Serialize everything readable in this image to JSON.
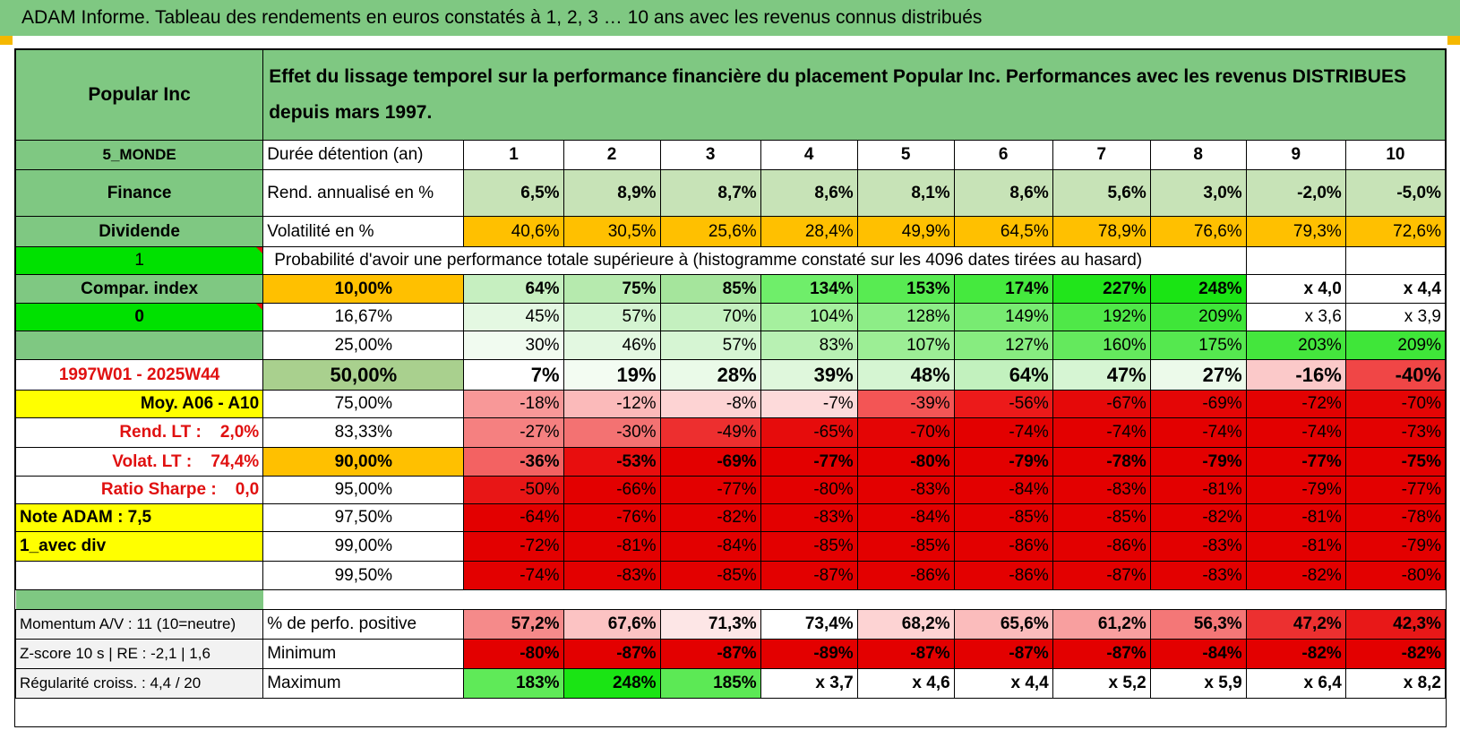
{
  "header": {
    "title": "ADAM Informe. Tableau des rendements en euros constatés à 1, 2, 3 … 10 ans avec les revenus connus distribués",
    "fund": "Popular Inc",
    "description": "Effet du lissage temporel sur la performance financière du placement Popular Inc. Performances avec les revenus DISTRIBUES depuis mars 1997."
  },
  "side": {
    "zone": "5_MONDE",
    "sector": "Finance",
    "type": "Dividende",
    "flag1": "1",
    "compar": "Compar. index",
    "flag0": "0",
    "period": "1997W01 - 2025W44",
    "moy": "Moy. A06 - A10",
    "rend_lt": "Rend. LT :    2,0%",
    "volat_lt": "Volat. LT :    74,4%",
    "sharpe": "Ratio Sharpe :    0,0",
    "note": "Note ADAM : 7,5",
    "avec_div": "1_avec div",
    "momentum": "Momentum A/V : 11 (10=neutre)",
    "zscore": "Z-score 10 s | RE : -2,1 | 1,6",
    "regularite": "Régularité croiss. : 4,4 / 20"
  },
  "labels": {
    "duree": "Durée détention (an)",
    "rend": "Rend. annualisé en %",
    "vol": "Volatilité en %",
    "proba": "Probabilité d'avoir une performance totale supérieure à (histogramme constaté sur les 4096 dates tirées au hasard)",
    "pct_pos": "% de perfo. positive",
    "minimum": "Minimum",
    "maximum": "Maximum"
  },
  "years": [
    "1",
    "2",
    "3",
    "4",
    "5",
    "6",
    "7",
    "8",
    "9",
    "10"
  ],
  "rend": [
    "6,5%",
    "8,9%",
    "8,7%",
    "8,6%",
    "8,1%",
    "8,6%",
    "5,6%",
    "3,0%",
    "-2,0%",
    "-5,0%"
  ],
  "vol": [
    "40,6%",
    "30,5%",
    "25,6%",
    "28,4%",
    "49,9%",
    "64,5%",
    "78,9%",
    "76,6%",
    "79,3%",
    "72,6%"
  ],
  "quantiles": [
    {
      "label": "10,00%",
      "values": [
        "64%",
        "75%",
        "85%",
        "134%",
        "153%",
        "174%",
        "227%",
        "248%",
        "x 4,0",
        "x 4,4"
      ],
      "colors": [
        "#c6efc0",
        "#b6eaae",
        "#a5e59c",
        "#6fee6a",
        "#58eb52",
        "#45e93e",
        "#21e51b",
        "#1ae414",
        "#ffffff",
        "#ffffff"
      ]
    },
    {
      "label": "16,67%",
      "values": [
        "45%",
        "57%",
        "70%",
        "104%",
        "128%",
        "149%",
        "192%",
        "209%",
        "x 3,6",
        "x 3,9"
      ],
      "colors": [
        "#e4f8e2",
        "#d4f4d1",
        "#c4f0bf",
        "#a5f09e",
        "#8ded87",
        "#78eb72",
        "#4fe848",
        "#3fe639",
        "#ffffff",
        "#ffffff"
      ]
    },
    {
      "label": "25,00%",
      "values": [
        "30%",
        "46%",
        "57%",
        "83%",
        "107%",
        "127%",
        "160%",
        "175%",
        "203%",
        "209%"
      ],
      "colors": [
        "#f1fbf0",
        "#e3f8e1",
        "#d6f5d3",
        "#b8f1b3",
        "#9cee95",
        "#87ec80",
        "#64e95d",
        "#55e84f",
        "#44e63d",
        "#3fe639"
      ]
    },
    {
      "label": "50,00%",
      "values": [
        "7%",
        "19%",
        "28%",
        "39%",
        "48%",
        "64%",
        "47%",
        "27%",
        "-16%",
        "-40%"
      ],
      "colors": [
        "#ffffff",
        "#f3fcf2",
        "#eafaE8",
        "#dff7dc",
        "#d5f5d2",
        "#c2f1be",
        "#d6f5d3",
        "#ecfaea",
        "#fbc9c9",
        "#f04646"
      ]
    },
    {
      "label": "75,00%",
      "values": [
        "-18%",
        "-12%",
        "-8%",
        "-7%",
        "-39%",
        "-56%",
        "-67%",
        "-69%",
        "-72%",
        "-70%"
      ],
      "colors": [
        "#f89898",
        "#fbbaba",
        "#fdd3d3",
        "#fddada",
        "#f35555",
        "#ec1a1a",
        "#e50909",
        "#e40606",
        "#e30202",
        "#e40505"
      ]
    },
    {
      "label": "83,33%",
      "values": [
        "-27%",
        "-30%",
        "-49%",
        "-65%",
        "-70%",
        "-74%",
        "-74%",
        "-74%",
        "-74%",
        "-73%"
      ],
      "colors": [
        "#f58080",
        "#f37272",
        "#ed2f2f",
        "#e60c0c",
        "#e40505",
        "#e30000",
        "#e30000",
        "#e30000",
        "#e30000",
        "#e30101"
      ]
    },
    {
      "label": "90,00%",
      "values": [
        "-36%",
        "-53%",
        "-69%",
        "-77%",
        "-80%",
        "-79%",
        "-78%",
        "-79%",
        "-77%",
        "-75%"
      ],
      "colors": [
        "#f36262",
        "#e80e0e",
        "#e30000",
        "#e30000",
        "#e30000",
        "#e30000",
        "#e30000",
        "#e30000",
        "#e30000",
        "#e30000"
      ]
    },
    {
      "label": "95,00%",
      "values": [
        "-50%",
        "-66%",
        "-77%",
        "-80%",
        "-83%",
        "-84%",
        "-83%",
        "-81%",
        "-79%",
        "-77%"
      ],
      "colors": [
        "#e81616",
        "#e30000",
        "#e30000",
        "#e30000",
        "#e30000",
        "#e30000",
        "#e30000",
        "#e30000",
        "#e30000",
        "#e30000"
      ]
    },
    {
      "label": "97,50%",
      "values": [
        "-64%",
        "-76%",
        "-82%",
        "-83%",
        "-84%",
        "-85%",
        "-85%",
        "-82%",
        "-81%",
        "-78%"
      ],
      "colors": [
        "#e30000",
        "#e30000",
        "#e30000",
        "#e30000",
        "#e30000",
        "#e30000",
        "#e30000",
        "#e30000",
        "#e30000",
        "#e30000"
      ]
    },
    {
      "label": "99,00%",
      "values": [
        "-72%",
        "-81%",
        "-84%",
        "-85%",
        "-85%",
        "-86%",
        "-86%",
        "-83%",
        "-81%",
        "-79%"
      ],
      "colors": [
        "#e30000",
        "#e30000",
        "#e30000",
        "#e30000",
        "#e30000",
        "#e30000",
        "#e30000",
        "#e30000",
        "#e30000",
        "#e30000"
      ]
    },
    {
      "label": "99,50%",
      "values": [
        "-74%",
        "-83%",
        "-85%",
        "-87%",
        "-86%",
        "-86%",
        "-87%",
        "-83%",
        "-82%",
        "-80%"
      ],
      "colors": [
        "#e30000",
        "#e30000",
        "#e30000",
        "#e30000",
        "#e30000",
        "#e30000",
        "#e30000",
        "#e30000",
        "#e30000",
        "#e30000"
      ]
    }
  ],
  "pct_pos": {
    "values": [
      "57,2%",
      "67,6%",
      "71,3%",
      "73,4%",
      "68,2%",
      "65,6%",
      "61,2%",
      "56,3%",
      "47,2%",
      "42,3%"
    ],
    "colors": [
      "#f58a8a",
      "#fcc3c3",
      "#fde6e6",
      "#ffffff",
      "#fdd3d3",
      "#fbbcbc",
      "#f89f9f",
      "#f47777",
      "#ec3030",
      "#e81818"
    ]
  },
  "minimum": {
    "values": [
      "-80%",
      "-87%",
      "-87%",
      "-89%",
      "-87%",
      "-87%",
      "-87%",
      "-84%",
      "-82%",
      "-82%"
    ],
    "colors": [
      "#e30000",
      "#e30000",
      "#e30000",
      "#e30000",
      "#e30000",
      "#e30000",
      "#e30000",
      "#e30000",
      "#e30000",
      "#e30000"
    ]
  },
  "maximum": {
    "values": [
      "183%",
      "248%",
      "185%",
      "x 3,7",
      "x 4,6",
      "x 4,4",
      "x 5,2",
      "x 5,9",
      "x 6,4",
      "x 8,2"
    ],
    "colors": [
      "#5fea58",
      "#1ae414",
      "#5ce955",
      "#ffffff",
      "#ffffff",
      "#ffffff",
      "#ffffff",
      "#ffffff",
      "#ffffff",
      "#ffffff"
    ]
  },
  "colors": {
    "header_green": "#7fc882",
    "bright_green": "#00e100",
    "yellow": "#ffff00",
    "orange": "#ffc000",
    "red_text": "#e01010",
    "rend_bg": "#c7e3b7",
    "vol_bg": "#ffc000",
    "median_label_bg": "#a9d08e"
  }
}
